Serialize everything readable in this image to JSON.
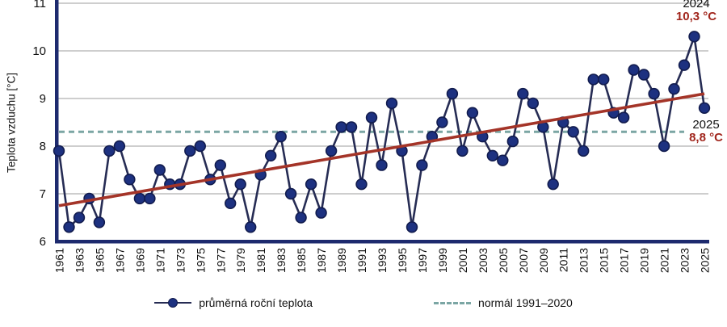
{
  "colors": {
    "series_line": "#262c54",
    "marker_fill": "#1d3180",
    "marker_stroke": "#121c4e",
    "trend_line": "#a43428",
    "normal_line": "#7ba6a4",
    "frame": "#1d2a6e",
    "gridline": "#b0b0b0",
    "annotation_value": "#a1261d",
    "text": "#111111"
  },
  "chart_data": {
    "type": "line",
    "ylabel": "Teplota vzduchu [°C]",
    "ylim": [
      6,
      11.1
    ],
    "y_ticks": [
      6,
      7,
      8,
      9,
      10,
      11
    ],
    "x_tick_years": [
      1961,
      1963,
      1965,
      1967,
      1969,
      1971,
      1973,
      1975,
      1977,
      1979,
      1981,
      1983,
      1985,
      1987,
      1989,
      1991,
      1993,
      1995,
      1997,
      1999,
      2001,
      2003,
      2005,
      2007,
      2009,
      2011,
      2013,
      2015,
      2017,
      2019,
      2021,
      2023,
      2025
    ],
    "x": [
      1961,
      1962,
      1963,
      1964,
      1965,
      1966,
      1967,
      1968,
      1969,
      1970,
      1971,
      1972,
      1973,
      1974,
      1975,
      1976,
      1977,
      1978,
      1979,
      1980,
      1981,
      1982,
      1983,
      1984,
      1985,
      1986,
      1987,
      1988,
      1989,
      1990,
      1991,
      1992,
      1993,
      1994,
      1995,
      1996,
      1997,
      1998,
      1999,
      2000,
      2001,
      2002,
      2003,
      2004,
      2005,
      2006,
      2007,
      2008,
      2009,
      2010,
      2011,
      2012,
      2013,
      2014,
      2015,
      2016,
      2017,
      2018,
      2019,
      2020,
      2021,
      2022,
      2023,
      2024,
      2025
    ],
    "series": [
      {
        "name": "průměrná roční teplota",
        "values": [
          7.9,
          6.3,
          6.5,
          6.9,
          6.4,
          7.9,
          8.0,
          7.3,
          6.9,
          6.9,
          7.5,
          7.2,
          7.2,
          7.9,
          8.0,
          7.3,
          7.6,
          6.8,
          7.2,
          6.3,
          7.4,
          7.8,
          8.2,
          7.0,
          6.5,
          7.2,
          6.6,
          7.9,
          8.4,
          8.4,
          7.2,
          8.6,
          7.6,
          8.9,
          7.9,
          6.3,
          7.6,
          8.2,
          8.5,
          9.1,
          7.9,
          8.7,
          8.2,
          7.8,
          7.7,
          8.1,
          9.1,
          8.9,
          8.4,
          7.2,
          8.5,
          8.3,
          7.9,
          9.4,
          9.4,
          8.7,
          8.6,
          9.6,
          9.5,
          9.1,
          8.0,
          9.2,
          9.7,
          10.3,
          8.8
        ]
      }
    ],
    "normal_line": {
      "value": 8.3
    },
    "trend_line": {
      "start_year": 1961,
      "start_value": 6.75,
      "end_year": 2025,
      "end_value": 9.1
    },
    "legend": [
      {
        "label": "průměrná roční teplota",
        "type": "line-dot"
      },
      {
        "label": "normál 1991–2020",
        "type": "dashed"
      }
    ],
    "annotations": [
      {
        "name": "max-2024",
        "year_label": "2024",
        "value_label": "10,3 °C"
      },
      {
        "name": "latest-2025",
        "year_label": "2025",
        "value_label": "8,8 °C"
      }
    ],
    "grid": "horizontal",
    "legend_position": "bottom"
  }
}
